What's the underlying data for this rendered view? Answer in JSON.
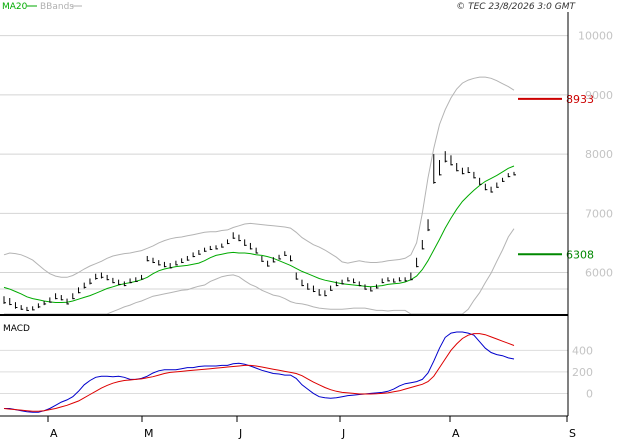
{
  "header": {
    "indicators": [
      {
        "label": "MA20",
        "color": "#00aa00"
      },
      {
        "label": "BBands",
        "color": "#b0b0b0"
      }
    ],
    "copyright": "© TEC 23/8/2026 3:0 GMT"
  },
  "chart_data": [
    {
      "type": "line",
      "panel": "price",
      "title": "",
      "ylim": [
        5300,
        10400
      ],
      "y_tick_labels": [
        "10000",
        "9000",
        "8000",
        "7000",
        "6000"
      ],
      "y_tick_values": [
        10000,
        9000,
        8000,
        7000,
        6000
      ],
      "x_labels": [
        "A",
        "M",
        "J",
        "J",
        "A",
        "S"
      ],
      "levels": [
        {
          "label": "8933",
          "value": 8933,
          "color": "#cc0000"
        },
        {
          "label": "6308",
          "value": 6308,
          "color": "#008800"
        }
      ],
      "price_bars": [
        [
          5600,
          5490,
          5470
        ],
        [
          5570,
          5460,
          5450
        ],
        [
          5500,
          5410,
          5390
        ],
        [
          5450,
          5380,
          5370
        ],
        [
          5420,
          5360,
          5350
        ],
        [
          5430,
          5370,
          5360
        ],
        [
          5480,
          5420,
          5400
        ],
        [
          5520,
          5470,
          5450
        ],
        [
          5580,
          5500,
          5490
        ],
        [
          5650,
          5560,
          5550
        ],
        [
          5620,
          5540,
          5530
        ],
        [
          5560,
          5470,
          5460
        ],
        [
          5650,
          5560,
          5550
        ],
        [
          5750,
          5660,
          5650
        ],
        [
          5830,
          5750,
          5730
        ],
        [
          5900,
          5820,
          5800
        ],
        [
          5980,
          5900,
          5880
        ],
        [
          6000,
          5920,
          5900
        ],
        [
          5960,
          5880,
          5870
        ],
        [
          5910,
          5830,
          5820
        ],
        [
          5880,
          5800,
          5790
        ],
        [
          5850,
          5780,
          5770
        ],
        [
          5900,
          5830,
          5820
        ],
        [
          5920,
          5850,
          5840
        ],
        [
          5960,
          5890,
          5880
        ],
        [
          6280,
          6200,
          6190
        ],
        [
          6250,
          6170,
          6160
        ],
        [
          6210,
          6130,
          6120
        ],
        [
          6180,
          6100,
          6090
        ],
        [
          6160,
          6080,
          6070
        ],
        [
          6200,
          6130,
          6120
        ],
        [
          6240,
          6170,
          6160
        ],
        [
          6280,
          6210,
          6200
        ],
        [
          6340,
          6270,
          6260
        ],
        [
          6380,
          6310,
          6300
        ],
        [
          6420,
          6360,
          6350
        ],
        [
          6450,
          6390,
          6380
        ],
        [
          6460,
          6400,
          6390
        ],
        [
          6490,
          6430,
          6420
        ],
        [
          6560,
          6490,
          6480
        ],
        [
          6680,
          6580,
          6570
        ],
        [
          6640,
          6540,
          6530
        ],
        [
          6560,
          6460,
          6450
        ],
        [
          6500,
          6400,
          6390
        ],
        [
          6420,
          6330,
          6320
        ],
        [
          6280,
          6190,
          6180
        ],
        [
          6200,
          6110,
          6100
        ],
        [
          6260,
          6180,
          6170
        ],
        [
          6300,
          6230,
          6220
        ],
        [
          6360,
          6290,
          6280
        ],
        [
          6290,
          6200,
          6190
        ],
        [
          6000,
          5890,
          5880
        ],
        [
          5880,
          5780,
          5770
        ],
        [
          5820,
          5720,
          5710
        ],
        [
          5780,
          5680,
          5670
        ],
        [
          5720,
          5620,
          5610
        ],
        [
          5700,
          5610,
          5600
        ],
        [
          5780,
          5700,
          5690
        ],
        [
          5850,
          5780,
          5770
        ],
        [
          5880,
          5810,
          5800
        ],
        [
          5920,
          5860,
          5850
        ],
        [
          5900,
          5830,
          5820
        ],
        [
          5850,
          5780,
          5770
        ],
        [
          5800,
          5720,
          5710
        ],
        [
          5760,
          5690,
          5680
        ],
        [
          5800,
          5740,
          5730
        ],
        [
          5900,
          5830,
          5820
        ],
        [
          5920,
          5860,
          5850
        ],
        [
          5900,
          5840,
          5830
        ],
        [
          5920,
          5860,
          5850
        ],
        [
          5920,
          5860,
          5850
        ],
        [
          6000,
          5880,
          5870
        ],
        [
          6250,
          6100,
          6090
        ],
        [
          6550,
          6400,
          6390
        ],
        [
          6900,
          6720,
          6700
        ],
        [
          8000,
          7520,
          7500
        ],
        [
          7900,
          7650,
          7640
        ],
        [
          8050,
          7880,
          7860
        ],
        [
          7980,
          7820,
          7810
        ],
        [
          7850,
          7720,
          7710
        ],
        [
          7770,
          7670,
          7660
        ],
        [
          7780,
          7690,
          7680
        ],
        [
          7700,
          7600,
          7590
        ],
        [
          7600,
          7490,
          7480
        ],
        [
          7500,
          7400,
          7390
        ],
        [
          7450,
          7360,
          7350
        ],
        [
          7520,
          7440,
          7430
        ],
        [
          7600,
          7540,
          7530
        ],
        [
          7680,
          7620,
          7610
        ],
        [
          7700,
          7650,
          7640
        ]
      ],
      "ma20": [
        5750,
        5720,
        5680,
        5640,
        5590,
        5560,
        5540,
        5520,
        5505,
        5495,
        5495,
        5500,
        5520,
        5550,
        5580,
        5610,
        5650,
        5690,
        5730,
        5760,
        5790,
        5810,
        5830,
        5850,
        5880,
        5920,
        5980,
        6030,
        6060,
        6080,
        6100,
        6110,
        6120,
        6140,
        6160,
        6200,
        6250,
        6290,
        6310,
        6330,
        6340,
        6330,
        6330,
        6320,
        6300,
        6290,
        6270,
        6240,
        6200,
        6160,
        6120,
        6070,
        6020,
        5980,
        5940,
        5900,
        5870,
        5850,
        5830,
        5810,
        5800,
        5790,
        5780,
        5770,
        5760,
        5770,
        5780,
        5800,
        5810,
        5820,
        5840,
        5880,
        5940,
        6050,
        6200,
        6380,
        6560,
        6750,
        6920,
        7070,
        7200,
        7300,
        7390,
        7470,
        7540,
        7590,
        7640,
        7700,
        7760,
        7800
      ],
      "bb_upper": [
        6300,
        6330,
        6320,
        6300,
        6260,
        6210,
        6130,
        6050,
        5980,
        5940,
        5920,
        5920,
        5950,
        6000,
        6060,
        6110,
        6150,
        6190,
        6240,
        6280,
        6300,
        6320,
        6330,
        6350,
        6370,
        6410,
        6450,
        6500,
        6540,
        6570,
        6590,
        6600,
        6620,
        6640,
        6660,
        6680,
        6690,
        6690,
        6710,
        6720,
        6760,
        6790,
        6820,
        6830,
        6820,
        6810,
        6800,
        6790,
        6780,
        6770,
        6750,
        6680,
        6590,
        6530,
        6470,
        6430,
        6380,
        6320,
        6260,
        6180,
        6160,
        6180,
        6200,
        6180,
        6170,
        6170,
        6180,
        6200,
        6210,
        6220,
        6240,
        6300,
        6500,
        7000,
        7600,
        8100,
        8500,
        8750,
        8950,
        9100,
        9200,
        9250,
        9280,
        9300,
        9300,
        9280,
        9240,
        9190,
        9140,
        9080
      ],
      "bb_lower": [
        5200,
        5150,
        5120,
        5080,
        5050,
        5030,
        5030,
        5050,
        5070,
        5080,
        5090,
        5110,
        5120,
        5120,
        5130,
        5150,
        5190,
        5250,
        5300,
        5340,
        5380,
        5420,
        5450,
        5490,
        5520,
        5560,
        5600,
        5620,
        5640,
        5660,
        5680,
        5700,
        5710,
        5740,
        5770,
        5790,
        5850,
        5890,
        5930,
        5950,
        5960,
        5930,
        5860,
        5800,
        5760,
        5700,
        5660,
        5620,
        5600,
        5560,
        5510,
        5480,
        5470,
        5450,
        5420,
        5400,
        5390,
        5380,
        5380,
        5380,
        5390,
        5400,
        5400,
        5400,
        5380,
        5360,
        5360,
        5350,
        5360,
        5360,
        5360,
        5270,
        5060,
        4800,
        4700,
        4700,
        4720,
        4800,
        4900,
        5060,
        5220,
        5380,
        5530,
        5660,
        5830,
        5990,
        6190,
        6380,
        6600,
        6740
      ]
    },
    {
      "type": "line",
      "panel": "macd",
      "title": "MACD",
      "ylim": [
        -200,
        700
      ],
      "y_tick_labels": [
        "400",
        "200",
        "0"
      ],
      "y_tick_values": [
        400,
        200,
        0
      ],
      "series": [
        {
          "name": "",
          "color": "#0000cc",
          "values": [
            -140,
            -140,
            -150,
            -160,
            -170,
            -175,
            -175,
            -160,
            -140,
            -110,
            -80,
            -60,
            -30,
            20,
            80,
            120,
            150,
            160,
            160,
            155,
            160,
            150,
            130,
            130,
            140,
            160,
            190,
            210,
            220,
            220,
            220,
            230,
            240,
            240,
            250,
            255,
            255,
            255,
            260,
            260,
            275,
            280,
            270,
            255,
            235,
            215,
            200,
            185,
            180,
            170,
            170,
            140,
            80,
            40,
            0,
            -30,
            -40,
            -45,
            -40,
            -30,
            -20,
            -15,
            -10,
            -5,
            0,
            5,
            10,
            20,
            40,
            70,
            90,
            100,
            110,
            130,
            190,
            300,
            420,
            520,
            560,
            570,
            570,
            560,
            540,
            480,
            420,
            380,
            360,
            350,
            330,
            320
          ]
        },
        {
          "name": "",
          "color": "#dd0000",
          "values": [
            -140,
            -145,
            -150,
            -155,
            -160,
            -165,
            -165,
            -160,
            -150,
            -140,
            -125,
            -110,
            -90,
            -70,
            -40,
            -10,
            20,
            50,
            75,
            95,
            110,
            120,
            125,
            130,
            135,
            145,
            155,
            170,
            185,
            195,
            200,
            205,
            210,
            215,
            220,
            225,
            230,
            235,
            240,
            245,
            250,
            255,
            260,
            260,
            255,
            245,
            235,
            225,
            215,
            205,
            195,
            185,
            165,
            135,
            105,
            80,
            55,
            35,
            20,
            10,
            5,
            0,
            -5,
            -5,
            -5,
            -3,
            0,
            5,
            15,
            25,
            40,
            55,
            70,
            85,
            110,
            160,
            240,
            320,
            400,
            460,
            510,
            540,
            555,
            555,
            545,
            525,
            505,
            485,
            465,
            445
          ]
        }
      ]
    }
  ]
}
